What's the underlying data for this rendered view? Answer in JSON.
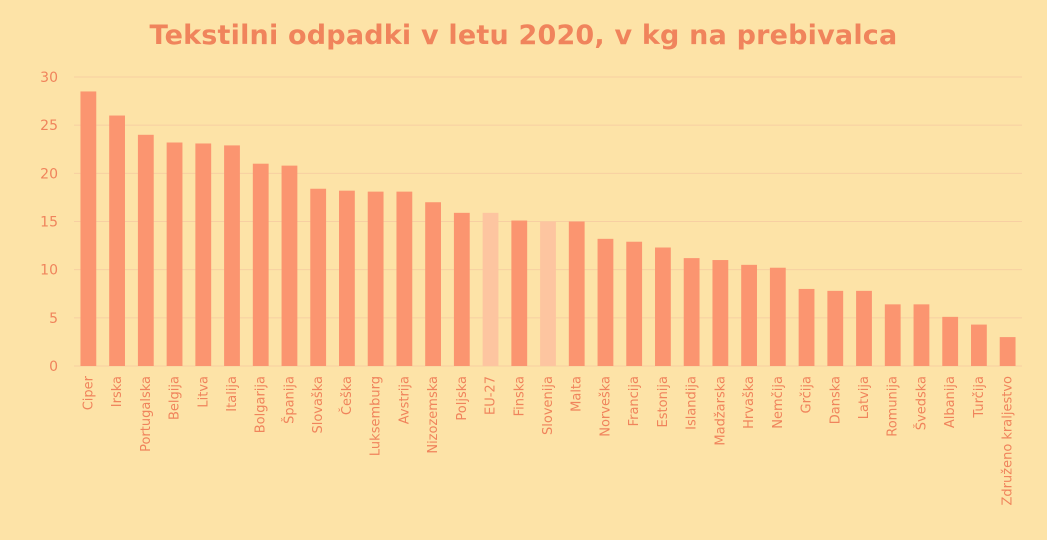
{
  "chart_data": {
    "type": "bar",
    "title": "Tekstilni odpadki v letu 2020, v kg na prebivalca",
    "xlabel": "",
    "ylabel": "",
    "ylim": [
      0,
      30
    ],
    "yticks": [
      0,
      5,
      10,
      15,
      20,
      25,
      30
    ],
    "grid": true,
    "categories": [
      "Ciper",
      "Irska",
      "Portugalska",
      "Belgija",
      "Litva",
      "Italija",
      "Bolgarija",
      "Španija",
      "Slovaška",
      "Češka",
      "Luksemburg",
      "Avstrija",
      "Nizozemska",
      "Poljska",
      "EU-27",
      "Finska",
      "Slovenija",
      "Malta",
      "Norveška",
      "Francija",
      "Estonija",
      "Islandija",
      "Madžarska",
      "Hrvaška",
      "Nemčija",
      "Grčija",
      "Danska",
      "Latvija",
      "Romunija",
      "Švedska",
      "Albanija",
      "Turčija",
      "Združeno kraljestvo"
    ],
    "values": [
      28.5,
      26.0,
      24.0,
      23.2,
      23.1,
      22.9,
      21.0,
      20.8,
      18.4,
      18.2,
      18.1,
      18.1,
      17.0,
      15.9,
      15.9,
      15.1,
      15.0,
      15.0,
      13.2,
      12.9,
      12.3,
      11.2,
      11.0,
      10.5,
      10.2,
      8.0,
      7.8,
      7.8,
      6.4,
      6.4,
      5.1,
      4.3,
      3.0
    ],
    "highlighted": [
      "EU-27",
      "Slovenija"
    ],
    "colors": {
      "bar": "#fb9570",
      "bar_highlight": "#fdc5a0",
      "text": "#f0845c",
      "grid": "#f7cfa2",
      "background": "#fde3a7"
    }
  }
}
